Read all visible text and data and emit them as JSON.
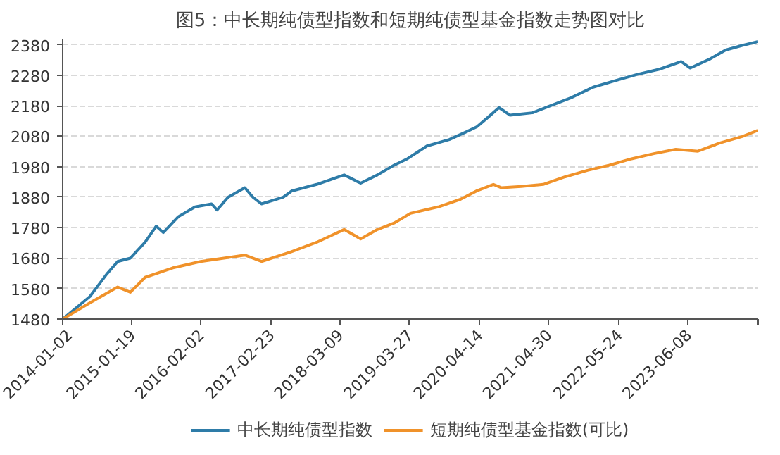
{
  "chart_data": {
    "type": "line",
    "title": "图5：中长期纯债型指数和短期纯债型基金指数走势图对比",
    "series": [
      {
        "name": "中长期纯债型指数",
        "color": "#2e7ca8",
        "x": [
          "2014-01-02",
          "2014-06-01",
          "2014-09-01",
          "2014-11-01",
          "2015-01-10",
          "2015-04-01",
          "2015-06-01",
          "2015-07-10",
          "2015-10-01",
          "2016-01-01",
          "2016-04-01",
          "2016-05-01",
          "2016-07-01",
          "2016-10-01",
          "2016-11-15",
          "2017-01-01",
          "2017-05-01",
          "2017-06-15",
          "2017-11-01",
          "2018-04-01",
          "2018-07-01",
          "2018-10-01",
          "2019-01-01",
          "2019-03-15",
          "2019-07-01",
          "2019-11-01",
          "2020-02-01",
          "2020-04-01",
          "2020-06-01",
          "2020-08-01",
          "2020-10-01",
          "2021-02-01",
          "2021-05-01",
          "2021-09-01",
          "2022-01-01",
          "2022-05-01",
          "2022-09-01",
          "2023-01-01",
          "2023-05-01",
          "2023-06-20",
          "2023-10-01",
          "2024-01-01",
          "2024-04-01",
          "2024-06-28"
        ],
        "values": [
          1480,
          1554,
          1627,
          1669,
          1680,
          1732,
          1785,
          1764,
          1816,
          1848,
          1858,
          1838,
          1880,
          1911,
          1880,
          1858,
          1880,
          1900,
          1922,
          1953,
          1926,
          1953,
          1985,
          2006,
          2048,
          2069,
          2094,
          2111,
          2142,
          2174,
          2149,
          2157,
          2178,
          2206,
          2241,
          2262,
          2283,
          2300,
          2325,
          2304,
          2332,
          2363,
          2378,
          2391
        ]
      },
      {
        "name": "短期纯债型基金指数(可比)",
        "color": "#f0922a",
        "x": [
          "2014-01-02",
          "2014-06-01",
          "2014-11-01",
          "2015-01-10",
          "2015-04-01",
          "2015-09-01",
          "2016-02-01",
          "2016-10-01",
          "2017-01-01",
          "2017-06-15",
          "2017-11-01",
          "2018-04-01",
          "2018-07-01",
          "2018-10-01",
          "2019-01-01",
          "2019-04-01",
          "2019-09-01",
          "2020-01-01",
          "2020-04-01",
          "2020-07-01",
          "2020-08-15",
          "2020-12-01",
          "2021-04-01",
          "2021-08-01",
          "2021-12-01",
          "2022-04-01",
          "2022-08-01",
          "2022-12-01",
          "2023-04-01",
          "2023-08-01",
          "2023-12-01",
          "2024-04-01",
          "2024-06-28"
        ],
        "values": [
          1480,
          1533,
          1585,
          1568,
          1617,
          1648,
          1669,
          1690,
          1669,
          1701,
          1732,
          1774,
          1743,
          1774,
          1795,
          1827,
          1848,
          1873,
          1901,
          1922,
          1911,
          1915,
          1922,
          1947,
          1968,
          1985,
          2006,
          2023,
          2037,
          2031,
          2058,
          2079,
          2100
        ]
      }
    ],
    "xlim": [
      "2014-01-02",
      "2024-06-28"
    ],
    "xticks": [
      "2014-01-02",
      "2015-01-19",
      "2016-02-02",
      "2017-02-23",
      "2018-03-09",
      "2019-03-27",
      "2020-04-14",
      "2021-04-30",
      "2022-05-24",
      "2023-06-08",
      {
        "value": "2024-06-28",
        "label": null
      }
    ],
    "ylim": [
      1480,
      2400
    ],
    "yticks": [
      1480,
      1580,
      1680,
      1780,
      1880,
      1980,
      2080,
      2180,
      2280,
      2380
    ],
    "grid": "y",
    "legend": "bottom",
    "line_style": "solid"
  }
}
